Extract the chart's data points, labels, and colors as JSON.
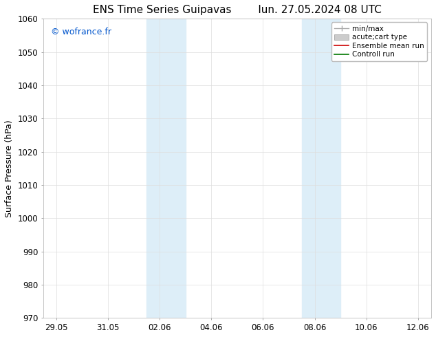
{
  "title_left": "ENS Time Series Guipavas",
  "title_right": "lun. 27.05.2024 08 UTC",
  "ylabel": "Surface Pressure (hPa)",
  "ylim": [
    970,
    1060
  ],
  "yticks": [
    970,
    980,
    990,
    1000,
    1010,
    1020,
    1030,
    1040,
    1050,
    1060
  ],
  "xtick_labels": [
    "29.05",
    "31.05",
    "02.06",
    "04.06",
    "06.06",
    "08.06",
    "10.06",
    "12.06"
  ],
  "xtick_positions": [
    0,
    2,
    4,
    6,
    8,
    10,
    12,
    14
  ],
  "xlim": [
    -0.5,
    14.5
  ],
  "watermark": "© wofrance.fr",
  "watermark_color": "#0055cc",
  "background_color": "#ffffff",
  "shaded_regions": [
    {
      "x_start": 3.5,
      "x_end": 4.5,
      "color": "#ddeef8"
    },
    {
      "x_start": 4.5,
      "x_end": 5.0,
      "color": "#ddeef8"
    },
    {
      "x_start": 9.5,
      "x_end": 10.5,
      "color": "#ddeef8"
    },
    {
      "x_start": 10.5,
      "x_end": 11.0,
      "color": "#ddeef8"
    }
  ],
  "legend_entries": [
    {
      "label": "min/max",
      "color": "#aaaaaa",
      "lw": 1.0,
      "style": "minmax"
    },
    {
      "label": "acute;cart type",
      "color": "#cccccc",
      "lw": 5,
      "style": "thick"
    },
    {
      "label": "Ensemble mean run",
      "color": "#cc0000",
      "lw": 1.2,
      "style": "solid"
    },
    {
      "label": "Controll run",
      "color": "#007700",
      "lw": 1.2,
      "style": "solid"
    }
  ],
  "grid_color": "#dddddd",
  "title_fontsize": 11,
  "axis_label_fontsize": 9,
  "tick_fontsize": 8.5,
  "watermark_fontsize": 9,
  "legend_fontsize": 7.5
}
